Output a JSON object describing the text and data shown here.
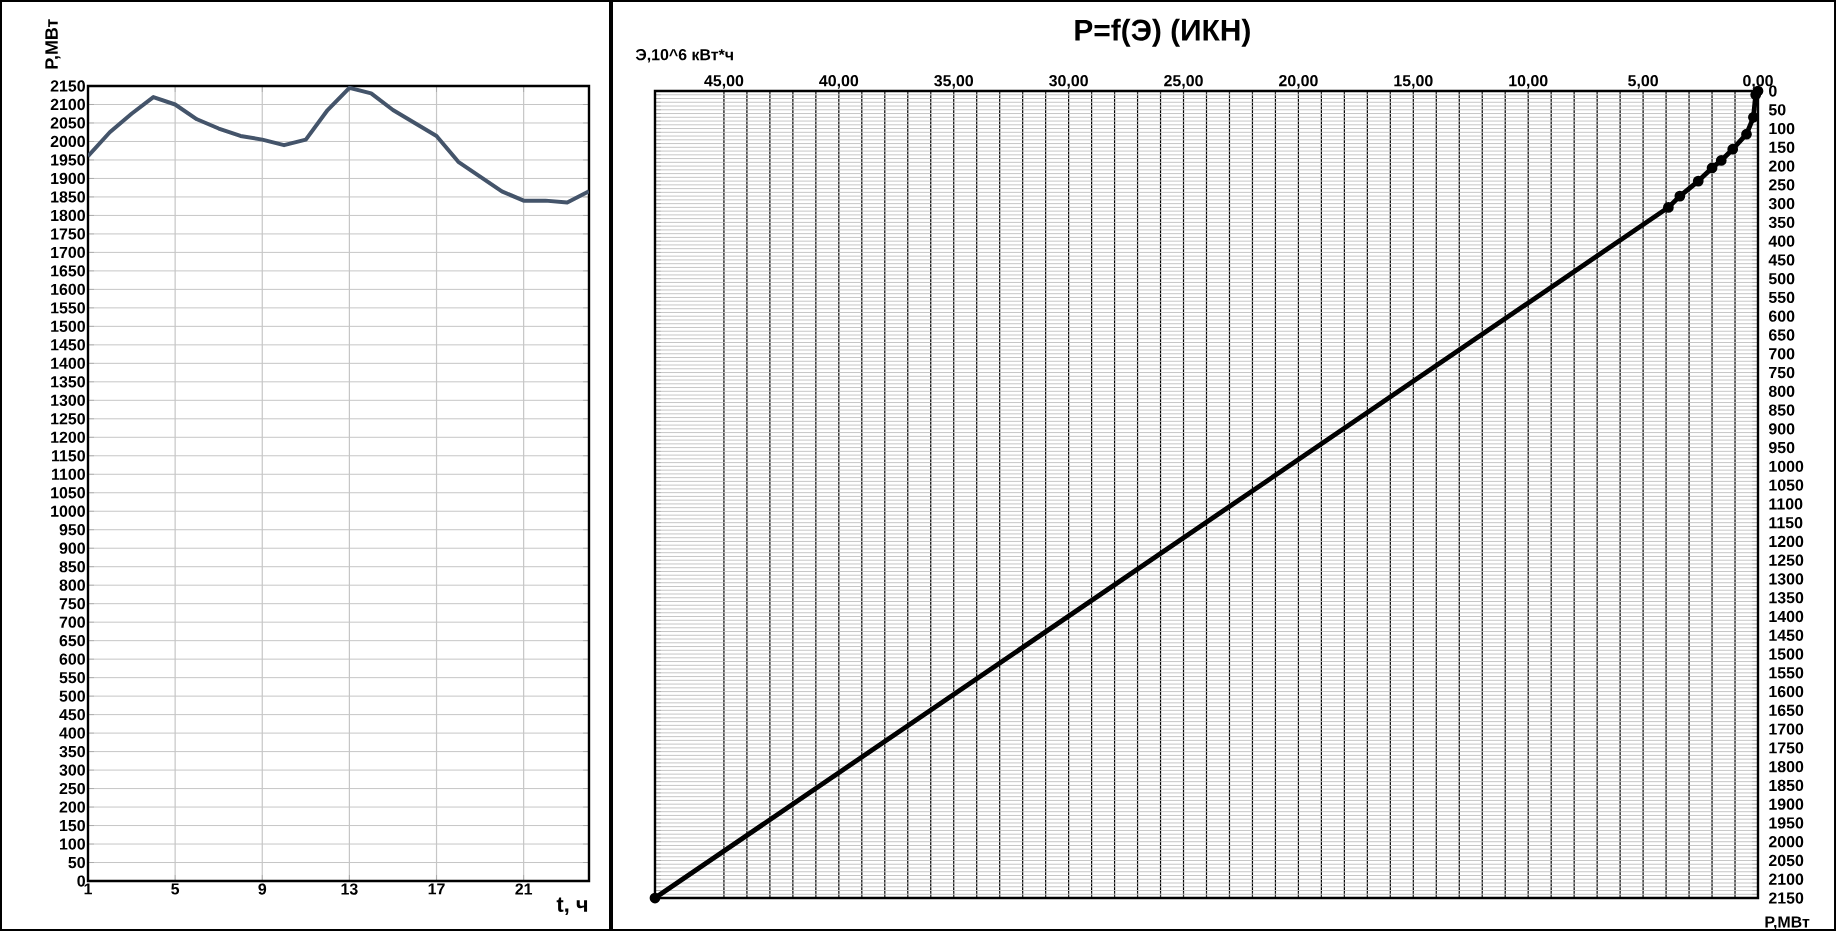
{
  "chart_data": [
    {
      "type": "line",
      "xlabel": "t, ч",
      "ylabel": "P,МВт",
      "x": [
        1,
        2,
        3,
        4,
        5,
        6,
        7,
        8,
        9,
        10,
        11,
        12,
        13,
        14,
        15,
        16,
        17,
        18,
        19,
        20,
        21,
        22,
        23,
        24
      ],
      "values": [
        1960,
        2025,
        2075,
        2120,
        2100,
        2060,
        2035,
        2015,
        2005,
        1990,
        2005,
        2085,
        2145,
        2130,
        2085,
        2050,
        2015,
        1945,
        1905,
        1865,
        1840,
        1840,
        1835,
        1865
      ],
      "color": "#44546a",
      "xlim": [
        1,
        24
      ],
      "xticks": [
        1,
        5,
        9,
        13,
        17,
        21
      ],
      "ylim": [
        0,
        2150
      ],
      "yticks": [
        0,
        50,
        100,
        150,
        200,
        250,
        300,
        350,
        400,
        450,
        500,
        550,
        600,
        650,
        700,
        750,
        800,
        850,
        900,
        950,
        1000,
        1050,
        1100,
        1150,
        1200,
        1250,
        1300,
        1350,
        1400,
        1450,
        1500,
        1550,
        1600,
        1650,
        1700,
        1750,
        1800,
        1850,
        1900,
        1950,
        2000,
        2050,
        2100,
        2150
      ],
      "grid": true
    },
    {
      "type": "line",
      "title": "P=f(Э)  (ИКН)",
      "xlabel": "Э,10^6 кВт*ч",
      "ylabel": "P,МВт",
      "x": [
        0,
        0.1,
        0.2,
        0.5,
        1.1,
        1.6,
        2.0,
        2.6,
        3.4,
        3.9,
        48
      ],
      "values": [
        0,
        10,
        70,
        115,
        155,
        185,
        205,
        240,
        280,
        310,
        2150
      ],
      "color": "#000000",
      "marker": "circle",
      "xlim": [
        48,
        0
      ],
      "xticks": [
        {
          "value": 45,
          "label": "45,00"
        },
        {
          "value": 40,
          "label": "40,00"
        },
        {
          "value": 35,
          "label": "35,00"
        },
        {
          "value": 30,
          "label": "30,00"
        },
        {
          "value": 25,
          "label": "25,00"
        },
        {
          "value": 20,
          "label": "20,00"
        },
        {
          "value": 15,
          "label": "15,00"
        },
        {
          "value": 10,
          "label": "10,00"
        },
        {
          "value": 5,
          "label": "5,00"
        },
        {
          "value": 0,
          "label": "0,00"
        }
      ],
      "ylim": [
        2150,
        0
      ],
      "yticks": [
        0,
        50,
        100,
        150,
        200,
        250,
        300,
        350,
        400,
        450,
        500,
        550,
        600,
        650,
        700,
        750,
        800,
        850,
        900,
        950,
        1000,
        1050,
        1100,
        1150,
        1200,
        1250,
        1300,
        1350,
        1400,
        1450,
        1500,
        1550,
        1600,
        1650,
        1700,
        1750,
        1800,
        1850,
        1900,
        1950,
        2000,
        2050,
        2100,
        2150
      ],
      "grid": true
    }
  ]
}
